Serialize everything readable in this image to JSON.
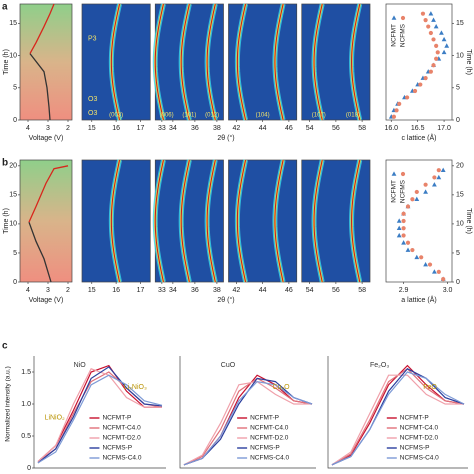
{
  "chart_data": [
    {
      "type": "line",
      "panel": "a",
      "xlabel": "Voltage (V)",
      "ylabel": "Time (h)",
      "xlim": [
        4.4,
        1.8
      ],
      "xticks": [
        4,
        3,
        2
      ],
      "ylim": [
        0,
        18
      ],
      "yticks": [
        0,
        5,
        10,
        15
      ],
      "series": [
        {
          "color": "#333333",
          "x": [
            2.9,
            2.95,
            3.05,
            3.2,
            3.9
          ],
          "values": [
            0,
            2,
            5,
            7.5,
            10.3
          ]
        },
        {
          "color": "#d8261c",
          "x": [
            3.9,
            3.6,
            3.2,
            2.9,
            2.7
          ],
          "values": [
            10.3,
            12,
            14.5,
            16.5,
            18
          ]
        }
      ]
    },
    {
      "type": "heatmap",
      "xlabel": "2θ (°)",
      "phase_labels": [
        "P3",
        "O3",
        "O3"
      ],
      "panels": [
        {
          "xlim": [
            14.6,
            17.4
          ],
          "xticks": [
            15,
            16,
            17
          ],
          "peak_labels": [
            "(003)"
          ]
        },
        {
          "xlim": [
            32.4,
            38.6
          ],
          "xticks": [
            33,
            34,
            36,
            38
          ],
          "peak_labels": [
            "(006)",
            "(101)",
            "(012)"
          ]
        },
        {
          "xlim": [
            41.4,
            46.6
          ],
          "xticks": [
            42,
            44,
            46
          ],
          "peak_labels": [
            "(104)"
          ]
        },
        {
          "xlim": [
            53.4,
            58.6
          ],
          "xticks": [
            54,
            56,
            58
          ],
          "peak_labels": [
            "(107)",
            "(018)"
          ]
        }
      ]
    },
    {
      "type": "scatter",
      "xlabel": "c lattice (Å)",
      "ylabel": "Time (h)",
      "xlim": [
        15.9,
        17.15
      ],
      "xticks": [
        {
          "value": 16,
          "label": "16.0"
        },
        {
          "value": 16.5,
          "label": "16.5"
        },
        {
          "value": 17,
          "label": "17.0"
        }
      ],
      "ylim": [
        0,
        18
      ],
      "yticks": [
        0,
        5,
        10,
        15
      ],
      "series": [
        {
          "name": "NCFMT",
          "color": "#3b7dc4",
          "marker": "triangle",
          "x": [
            16.0,
            16.05,
            16.12,
            16.25,
            16.4,
            16.5,
            16.6,
            16.7,
            16.8,
            16.9,
            17.0,
            17.05,
            17.0,
            16.95,
            16.85,
            16.8,
            16.75
          ],
          "values": [
            0.5,
            1.5,
            2.5,
            3.5,
            4.5,
            5.5,
            6.5,
            7.5,
            8.5,
            9.5,
            10.5,
            11.5,
            12.5,
            13.5,
            14.5,
            15.5,
            16.5
          ]
        },
        {
          "name": "NCFMS",
          "color": "#e8836a",
          "marker": "circle",
          "x": [
            16.05,
            16.1,
            16.15,
            16.3,
            16.45,
            16.55,
            16.65,
            16.75,
            16.8,
            16.85,
            16.88,
            16.85,
            16.8,
            16.75,
            16.7,
            16.65,
            16.6
          ],
          "values": [
            0.5,
            1.5,
            2.5,
            3.5,
            4.5,
            5.5,
            6.5,
            7.5,
            8.5,
            9.5,
            10.5,
            11.5,
            12.5,
            13.5,
            14.5,
            15.5,
            16.5
          ]
        }
      ]
    },
    {
      "type": "line",
      "panel": "b",
      "xlabel": "Voltage (V)",
      "ylabel": "Time (h)",
      "xlim": [
        4.4,
        1.8
      ],
      "xticks": [
        4,
        3,
        2
      ],
      "ylim": [
        0,
        21
      ],
      "yticks": [
        0,
        5,
        10,
        15,
        20
      ],
      "series": [
        {
          "color": "#333333",
          "x": [
            2.85,
            3.2,
            3.6,
            3.95
          ],
          "values": [
            0,
            4,
            7,
            10.3
          ]
        },
        {
          "color": "#d8261c",
          "x": [
            3.95,
            3.6,
            3.1,
            2.7,
            2.0
          ],
          "values": [
            10.3,
            13,
            17,
            19.5,
            20
          ]
        }
      ]
    },
    {
      "type": "heatmap",
      "xlabel": "2θ (°)",
      "panels": [
        {
          "xlim": [
            14.6,
            17.4
          ],
          "xticks": [
            15,
            16,
            17
          ]
        },
        {
          "xlim": [
            32.4,
            38.6
          ],
          "xticks": [
            33,
            34,
            36,
            38
          ]
        },
        {
          "xlim": [
            41.4,
            46.6
          ],
          "xticks": [
            42,
            44,
            46
          ]
        },
        {
          "xlim": [
            53.4,
            58.6
          ],
          "xticks": [
            54,
            56,
            58
          ]
        }
      ]
    },
    {
      "type": "scatter",
      "xlabel": "a lattice (Å)",
      "ylabel": "Time (h)",
      "xlim": [
        2.86,
        3.01
      ],
      "xticks": [
        2.9,
        {
          "value": 3,
          "label": "3.0"
        }
      ],
      "ylim": [
        0,
        21
      ],
      "yticks": [
        0,
        5,
        10,
        15,
        20
      ],
      "series": [
        {
          "name": "NCFMT",
          "color": "#3b7dc4",
          "marker": "triangle",
          "x": [
            2.99,
            2.97,
            2.95,
            2.93,
            2.91,
            2.9,
            2.89,
            2.89,
            2.89,
            2.9,
            2.91,
            2.93,
            2.95,
            2.97,
            2.98,
            2.99
          ],
          "values": [
            0.5,
            1.75,
            3,
            4.25,
            5.5,
            6.75,
            8,
            9.25,
            10.5,
            11.75,
            13,
            14.25,
            15.5,
            16.75,
            18,
            19.25
          ]
        },
        {
          "name": "NCFMS",
          "color": "#e8836a",
          "marker": "circle",
          "x": [
            2.99,
            2.98,
            2.96,
            2.94,
            2.92,
            2.91,
            2.9,
            2.9,
            2.9,
            2.9,
            2.91,
            2.92,
            2.93,
            2.95,
            2.97,
            2.98
          ],
          "values": [
            0.5,
            1.75,
            3,
            4.25,
            5.5,
            6.75,
            8,
            9.25,
            10.5,
            11.75,
            13,
            14.25,
            15.5,
            16.75,
            18,
            19.25
          ]
        }
      ]
    },
    {
      "type": "spectrum",
      "panel": "c",
      "ylabel": "Normalized intensity (a.u.)",
      "ylim": [
        0,
        1.75
      ],
      "yticks": [
        0,
        0.5,
        {
          "value": 1,
          "label": "1.0"
        },
        1.5
      ],
      "annotations": [
        "NiO",
        "Li₂NiO₃",
        "LiNiO₂"
      ],
      "categories": [
        null,
        null,
        null,
        null,
        null,
        null,
        null,
        null
      ],
      "series": [
        {
          "name": "NCFMT-P",
          "color": "#c8102e",
          "style": "solid",
          "values": [
            0.1,
            0.35,
            0.9,
            1.5,
            1.6,
            1.2,
            0.95,
            0.95
          ]
        },
        {
          "name": "NCFMT-C4.0",
          "color": "#e0707a",
          "style": "solid",
          "values": [
            0.1,
            0.3,
            0.85,
            1.35,
            1.5,
            1.25,
            1.0,
            0.95
          ]
        },
        {
          "name": "NCFMT-D2.0",
          "color": "#f0a0aa",
          "style": "solid",
          "values": [
            0.1,
            0.35,
            1.0,
            1.55,
            1.45,
            1.1,
            0.95,
            0.95
          ]
        },
        {
          "name": "NCFMS-P",
          "color": "#2b3f9e",
          "style": "solid",
          "values": [
            0.08,
            0.3,
            0.8,
            1.4,
            1.58,
            1.25,
            1.0,
            0.97
          ]
        },
        {
          "name": "NCFMS-C4.0",
          "color": "#7d9ad6",
          "style": "solid",
          "values": [
            0.08,
            0.25,
            0.75,
            1.3,
            1.45,
            1.3,
            1.05,
            0.98
          ]
        }
      ]
    },
    {
      "type": "spectrum",
      "ylim": [
        0,
        1.75
      ],
      "annotations": [
        "CuO",
        "Cu₂O"
      ],
      "categories": [
        null,
        null,
        null,
        null,
        null,
        null,
        null,
        null
      ],
      "series": [
        {
          "name": "NCFMT-P",
          "color": "#c8102e",
          "style": "solid",
          "values": [
            0.05,
            0.15,
            0.5,
            1.1,
            1.45,
            1.3,
            1.05,
            1.0
          ]
        },
        {
          "name": "NCFMT-C4.0",
          "color": "#e0707a",
          "style": "solid",
          "values": [
            0.05,
            0.18,
            0.6,
            1.2,
            1.4,
            1.25,
            1.05,
            1.0
          ]
        },
        {
          "name": "NCFMT-D2.0",
          "color": "#f0a0aa",
          "style": "solid",
          "values": [
            0.05,
            0.2,
            0.7,
            1.3,
            1.35,
            1.15,
            1.0,
            1.0
          ]
        },
        {
          "name": "NCFMS-P",
          "color": "#2b3f9e",
          "style": "solid",
          "values": [
            0.05,
            0.15,
            0.45,
            1.0,
            1.4,
            1.35,
            1.1,
            1.0
          ]
        },
        {
          "name": "NCFMS-C4.0",
          "color": "#7d9ad6",
          "style": "solid",
          "values": [
            0.05,
            0.15,
            0.5,
            1.05,
            1.35,
            1.3,
            1.1,
            1.0
          ]
        }
      ]
    },
    {
      "type": "spectrum",
      "ylim": [
        0,
        1.75
      ],
      "annotations": [
        "Fe₂O₃",
        "FeO"
      ],
      "categories": [
        null,
        null,
        null,
        null,
        null,
        null,
        null,
        null
      ],
      "series": [
        {
          "name": "NCFMT-P",
          "color": "#c8102e",
          "style": "solid",
          "values": [
            0.05,
            0.2,
            0.7,
            1.3,
            1.6,
            1.3,
            1.05,
            1.0
          ]
        },
        {
          "name": "NCFMT-C4.0",
          "color": "#e0707a",
          "style": "solid",
          "values": [
            0.05,
            0.22,
            0.75,
            1.35,
            1.55,
            1.25,
            1.05,
            1.0
          ]
        },
        {
          "name": "NCFMT-D2.0",
          "color": "#f0a0aa",
          "style": "solid",
          "values": [
            0.05,
            0.25,
            0.85,
            1.45,
            1.45,
            1.15,
            1.0,
            1.0
          ]
        },
        {
          "name": "NCFMS-P",
          "color": "#2b3f9e",
          "style": "solid",
          "values": [
            0.05,
            0.18,
            0.6,
            1.2,
            1.55,
            1.4,
            1.1,
            1.0
          ]
        },
        {
          "name": "NCFMS-C4.0",
          "color": "#7d9ad6",
          "style": "solid",
          "values": [
            0.05,
            0.18,
            0.6,
            1.15,
            1.5,
            1.4,
            1.15,
            1.0
          ]
        }
      ]
    }
  ]
}
